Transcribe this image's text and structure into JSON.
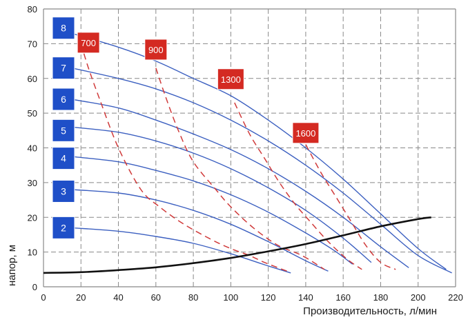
{
  "chart_data": {
    "type": "line",
    "title": "",
    "xlabel": "Производительность, л/мин",
    "ylabel": "напор, м",
    "xlim": [
      0,
      220
    ],
    "ylim": [
      0,
      80
    ],
    "xticks": [
      0,
      20,
      40,
      60,
      80,
      100,
      120,
      140,
      160,
      180,
      200,
      220
    ],
    "yticks": [
      0,
      10,
      20,
      30,
      40,
      50,
      60,
      70,
      80
    ],
    "grid": true,
    "colors": {
      "curve": "#3b5fc0",
      "dashed": "#d03a3a",
      "system": "#111111",
      "blue_box": "#1f4fc8",
      "red_box": "#d42a22",
      "grid": "#888888"
    },
    "series": [
      {
        "name": "8",
        "kind": "pump-curve",
        "x": [
          15,
          40,
          60,
          80,
          100,
          120,
          140,
          160,
          180,
          200,
          215
        ],
        "y": [
          73,
          69,
          65,
          60,
          55,
          48,
          40,
          31,
          21,
          11,
          5
        ]
      },
      {
        "name": "7",
        "kind": "pump-curve",
        "x": [
          15,
          40,
          60,
          80,
          100,
          120,
          140,
          160,
          180,
          200,
          218
        ],
        "y": [
          63,
          60,
          57,
          53,
          48,
          42,
          35,
          27,
          18,
          9,
          4
        ]
      },
      {
        "name": "6",
        "kind": "pump-curve",
        "x": [
          15,
          40,
          60,
          80,
          100,
          120,
          140,
          160,
          180,
          195
        ],
        "y": [
          54,
          51.5,
          48,
          44,
          39.5,
          34,
          27.5,
          20,
          11.5,
          5.5
        ]
      },
      {
        "name": "5",
        "kind": "pump-curve",
        "x": [
          15,
          40,
          60,
          80,
          100,
          120,
          140,
          160,
          175
        ],
        "y": [
          46,
          44.5,
          42,
          38.5,
          34,
          28.5,
          22,
          14,
          7
        ]
      },
      {
        "name": "4",
        "kind": "pump-curve",
        "x": [
          15,
          40,
          60,
          80,
          100,
          120,
          140,
          155,
          165
        ],
        "y": [
          37.5,
          36,
          33.5,
          30.5,
          26.5,
          21.5,
          15.5,
          10.5,
          6.5
        ]
      },
      {
        "name": "3",
        "kind": "pump-curve",
        "x": [
          15,
          40,
          60,
          80,
          100,
          120,
          140,
          152
        ],
        "y": [
          28,
          27,
          25,
          22,
          18,
          13,
          7.5,
          4.5
        ]
      },
      {
        "name": "2",
        "kind": "pump-curve",
        "x": [
          15,
          40,
          60,
          80,
          100,
          120,
          132
        ],
        "y": [
          17,
          16,
          14.5,
          12.5,
          9.5,
          6,
          4
        ]
      },
      {
        "name": "700",
        "kind": "speed-line",
        "x": [
          20,
          24,
          30,
          40,
          52,
          62,
          75,
          90,
          100,
          110,
          118,
          130
        ],
        "y": [
          70,
          63,
          54,
          40,
          28,
          23,
          18,
          13.5,
          11,
          9,
          7,
          4.5
        ]
      },
      {
        "name": "900",
        "kind": "speed-line",
        "x": [
          60,
          65,
          72,
          80,
          92,
          100,
          112,
          125,
          138,
          150
        ],
        "y": [
          63,
          55,
          45,
          36,
          28,
          23,
          17,
          12,
          9,
          5
        ]
      },
      {
        "name": "1300",
        "kind": "speed-line",
        "x": [
          102,
          110,
          118,
          126,
          134,
          142,
          152,
          162,
          170
        ],
        "y": [
          53,
          44,
          37,
          30,
          24,
          19,
          13,
          8,
          5
        ]
      },
      {
        "name": "1600",
        "kind": "speed-line",
        "x": [
          140,
          148,
          156,
          164,
          172,
          180,
          188
        ],
        "y": [
          41,
          33,
          26,
          19,
          12,
          7,
          5
        ]
      },
      {
        "name": "system",
        "kind": "system-curve",
        "x": [
          0,
          20,
          40,
          60,
          80,
          100,
          120,
          140,
          160,
          180,
          200,
          207
        ],
        "y": [
          4,
          4.2,
          4.8,
          5.6,
          6.8,
          8.3,
          10.2,
          12.3,
          14.8,
          17.4,
          19.5,
          20
        ]
      }
    ],
    "curve_labels": [
      {
        "text": "8",
        "y": 74.5
      },
      {
        "text": "7",
        "y": 63
      },
      {
        "text": "6",
        "y": 54
      },
      {
        "text": "5",
        "y": 45
      },
      {
        "text": "4",
        "y": 37
      },
      {
        "text": "3",
        "y": 27.5
      },
      {
        "text": "2",
        "y": 17
      }
    ],
    "speed_labels": [
      {
        "text": "700",
        "x": 24,
        "y": 70.5
      },
      {
        "text": "900",
        "x": 60,
        "y": 68.5
      },
      {
        "text": "1300",
        "x": 100,
        "y": 60
      },
      {
        "text": "1600",
        "x": 140,
        "y": 44.5
      }
    ]
  }
}
